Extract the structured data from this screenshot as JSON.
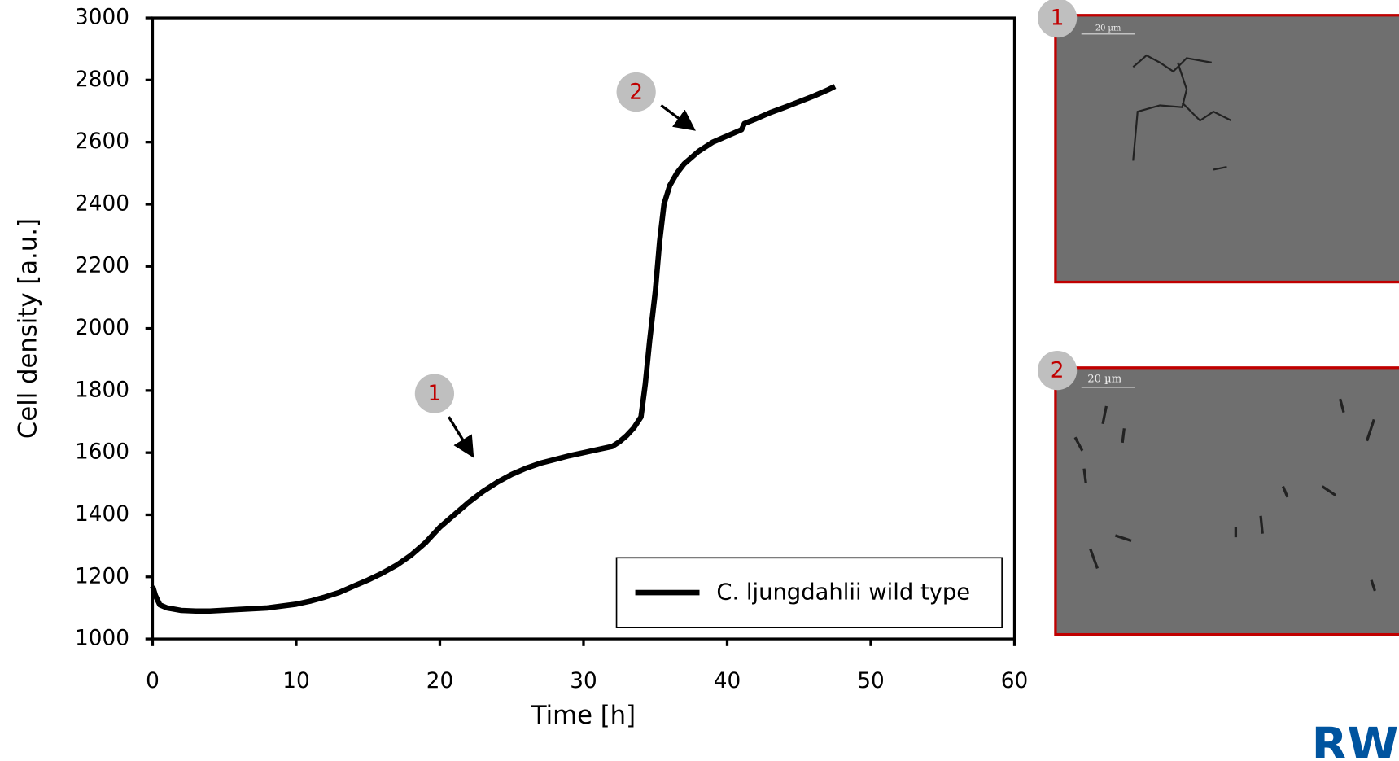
{
  "chart_data": {
    "type": "line",
    "xlabel": "Time [h]",
    "ylabel": "Cell density [a.u.]",
    "xlim": [
      0,
      60
    ],
    "xticks": [
      0,
      10,
      20,
      30,
      40,
      50,
      60
    ],
    "ylim": [
      1000,
      3000
    ],
    "yticks": [
      1000,
      1200,
      1400,
      1600,
      1800,
      2000,
      2200,
      2400,
      2600,
      2800,
      3000
    ],
    "legend": "lower right",
    "annotations": [
      "1",
      "2"
    ],
    "series": [
      {
        "name": "C. ljungdahlii wild type",
        "color": "#000000",
        "x": [
          0,
          0.2,
          0.5,
          1,
          2,
          3,
          4,
          6,
          8,
          10,
          11,
          12,
          13,
          14,
          15,
          16,
          17,
          18,
          19,
          20,
          21,
          22,
          23,
          24,
          25,
          26,
          27,
          28,
          29,
          30,
          31,
          32,
          32.5,
          33,
          33.5,
          34,
          34.3,
          34.6,
          35,
          35.3,
          35.6,
          36,
          36.5,
          37,
          38,
          39,
          40,
          41,
          41.2,
          42,
          43,
          44,
          45,
          46,
          47,
          47.5
        ],
        "values": [
          1170,
          1140,
          1110,
          1100,
          1092,
          1090,
          1090,
          1095,
          1100,
          1112,
          1122,
          1135,
          1150,
          1170,
          1190,
          1212,
          1238,
          1270,
          1310,
          1360,
          1400,
          1440,
          1475,
          1505,
          1530,
          1550,
          1566,
          1578,
          1590,
          1600,
          1610,
          1620,
          1635,
          1655,
          1680,
          1715,
          1820,
          1960,
          2120,
          2280,
          2400,
          2460,
          2500,
          2530,
          2570,
          2600,
          2620,
          2640,
          2660,
          2675,
          2695,
          2712,
          2730,
          2748,
          2768,
          2780
        ]
      }
    ]
  },
  "panels": [
    {
      "label": "1",
      "scale": "20 µm"
    },
    {
      "label": "2",
      "scale": "20 µm"
    }
  ],
  "logo": "RW"
}
